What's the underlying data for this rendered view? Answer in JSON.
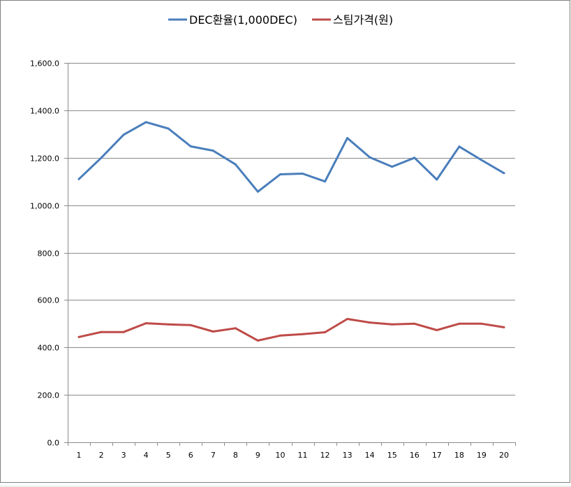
{
  "chart_data": {
    "type": "line",
    "title": "",
    "xlabel": "",
    "ylabel": "",
    "categories": [
      "1",
      "2",
      "3",
      "4",
      "5",
      "6",
      "7",
      "8",
      "9",
      "10",
      "11",
      "12",
      "13",
      "14",
      "15",
      "16",
      "17",
      "18",
      "19",
      "20"
    ],
    "ylim": [
      0,
      1600
    ],
    "yticks": [
      0,
      200,
      400,
      600,
      800,
      1000,
      1200,
      1400,
      1600
    ],
    "ytick_labels": [
      "0.0",
      "200.0",
      "400.0",
      "600.0",
      "800.0",
      "1,000.0",
      "1,200.0",
      "1,400.0",
      "1,600.0"
    ],
    "grid": true,
    "legend_position": "top",
    "series": [
      {
        "name": "DEC환율(1,000DEC)",
        "color": "#4a7ebb",
        "values": [
          1110,
          1200,
          1297,
          1350,
          1323,
          1248,
          1230,
          1172,
          1057,
          1130,
          1133,
          1100,
          1283,
          1202,
          1162,
          1200,
          1108,
          1247,
          1190,
          1135
        ]
      },
      {
        "name": "스팀가격(원)",
        "color": "#be4b48",
        "values": [
          444,
          465,
          465,
          502,
          497,
          494,
          467,
          481,
          429,
          450,
          456,
          464,
          520,
          505,
          497,
          500,
          473,
          500,
          500,
          485
        ]
      }
    ]
  }
}
